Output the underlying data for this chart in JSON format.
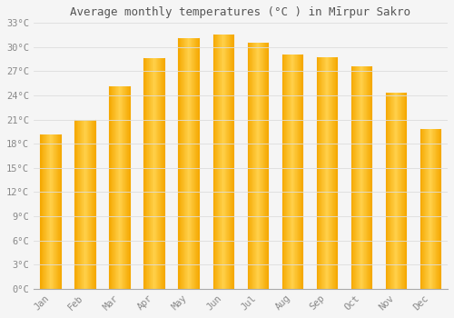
{
  "months": [
    "Jan",
    "Feb",
    "Mar",
    "Apr",
    "May",
    "Jun",
    "Jul",
    "Aug",
    "Sep",
    "Oct",
    "Nov",
    "Dec"
  ],
  "values": [
    19.2,
    21.0,
    25.1,
    28.6,
    31.1,
    31.6,
    30.5,
    29.1,
    28.7,
    27.6,
    24.4,
    19.8
  ],
  "bar_color_center": "#FFD04A",
  "bar_color_edge": "#F5A800",
  "background_color": "#F5F5F5",
  "plot_bg_color": "#F5F5F5",
  "grid_color": "#DDDDDD",
  "title": "Average monthly temperatures (°C ) in Mīrpur Sakro",
  "title_fontsize": 9,
  "tick_fontsize": 7.5,
  "tick_color": "#888888",
  "ylim": [
    0,
    33
  ],
  "yticks": [
    0,
    3,
    6,
    9,
    12,
    15,
    18,
    21,
    24,
    27,
    30,
    33
  ],
  "ytick_labels": [
    "0°C",
    "3°C",
    "6°C",
    "9°C",
    "12°C",
    "15°C",
    "18°C",
    "21°C",
    "24°C",
    "27°C",
    "30°C",
    "33°C"
  ],
  "bar_width": 0.6
}
